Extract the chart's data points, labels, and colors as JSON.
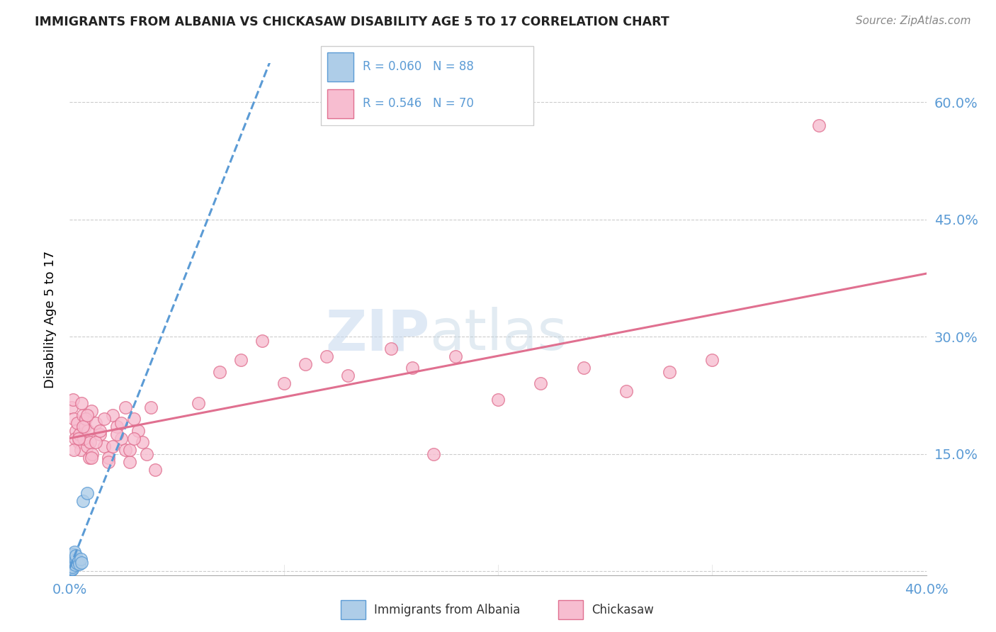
{
  "title": "IMMIGRANTS FROM ALBANIA VS CHICKASAW DISABILITY AGE 5 TO 17 CORRELATION CHART",
  "source": "Source: ZipAtlas.com",
  "ylabel": "Disability Age 5 to 17",
  "xlim": [
    0.0,
    0.4
  ],
  "ylim": [
    -0.005,
    0.65
  ],
  "yticks": [
    0.0,
    0.15,
    0.3,
    0.45,
    0.6
  ],
  "ytick_labels": [
    "",
    "15.0%",
    "30.0%",
    "45.0%",
    "60.0%"
  ],
  "background_color": "#ffffff",
  "albania_color": "#aecde8",
  "albania_edge": "#5b9bd5",
  "chickasaw_color": "#f7bdd0",
  "chickasaw_edge": "#e07090",
  "albania_trend_color": "#5b9bd5",
  "chickasaw_trend_color": "#e07090",
  "watermark_zip": "ZIP",
  "watermark_atlas": "atlas",
  "albania_data": [
    [
      0.0005,
      0.005
    ],
    [
      0.0008,
      0.01
    ],
    [
      0.001,
      0.008
    ],
    [
      0.0012,
      0.003
    ],
    [
      0.0006,
      0.015
    ],
    [
      0.0009,
      0.012
    ],
    [
      0.0007,
      0.018
    ],
    [
      0.0011,
      0.006
    ],
    [
      0.0013,
      0.009
    ],
    [
      0.0005,
      0.02
    ],
    [
      0.0008,
      0.004
    ],
    [
      0.001,
      0.013
    ],
    [
      0.0006,
      0.007
    ],
    [
      0.0012,
      0.016
    ],
    [
      0.0009,
      0.011
    ],
    [
      0.0007,
      0.002
    ],
    [
      0.0011,
      0.019
    ],
    [
      0.0013,
      0.014
    ],
    [
      0.0005,
      0.008
    ],
    [
      0.0008,
      0.017
    ],
    [
      0.001,
      0.005
    ],
    [
      0.0006,
      0.012
    ],
    [
      0.0012,
      0.009
    ],
    [
      0.0009,
      0.021
    ],
    [
      0.0007,
      0.003
    ],
    [
      0.0011,
      0.016
    ],
    [
      0.0013,
      0.007
    ],
    [
      0.0005,
      0.013
    ],
    [
      0.0008,
      0.01
    ],
    [
      0.001,
      0.018
    ],
    [
      0.0006,
      0.006
    ],
    [
      0.0012,
      0.014
    ],
    [
      0.0009,
      0.011
    ],
    [
      0.0007,
      0.004
    ],
    [
      0.0011,
      0.019
    ],
    [
      0.0013,
      0.008
    ],
    [
      0.0005,
      0.015
    ],
    [
      0.0008,
      0.002
    ],
    [
      0.001,
      0.012
    ],
    [
      0.0006,
      0.009
    ],
    [
      0.0012,
      0.017
    ],
    [
      0.0009,
      0.005
    ],
    [
      0.0007,
      0.013
    ],
    [
      0.0011,
      0.02
    ],
    [
      0.0013,
      0.007
    ],
    [
      0.0005,
      0.016
    ],
    [
      0.0008,
      0.011
    ],
    [
      0.001,
      0.003
    ],
    [
      0.0006,
      0.018
    ],
    [
      0.0012,
      0.008
    ],
    [
      0.0009,
      0.014
    ],
    [
      0.0007,
      0.01
    ],
    [
      0.0011,
      0.006
    ],
    [
      0.0013,
      0.015
    ],
    [
      0.0005,
      0.009
    ],
    [
      0.0008,
      0.012
    ],
    [
      0.001,
      0.019
    ],
    [
      0.0006,
      0.004
    ],
    [
      0.0012,
      0.016
    ],
    [
      0.0009,
      0.007
    ],
    [
      0.0007,
      0.013
    ],
    [
      0.0011,
      0.021
    ],
    [
      0.0013,
      0.005
    ],
    [
      0.0005,
      0.011
    ],
    [
      0.0008,
      0.017
    ],
    [
      0.001,
      0.008
    ],
    [
      0.0006,
      0.014
    ],
    [
      0.0012,
      0.003
    ],
    [
      0.0009,
      0.019
    ],
    [
      0.0007,
      0.01
    ],
    [
      0.0011,
      0.006
    ],
    [
      0.0013,
      0.015
    ],
    [
      0.0015,
      0.022
    ],
    [
      0.002,
      0.018
    ],
    [
      0.0018,
      0.012
    ],
    [
      0.0022,
      0.025
    ],
    [
      0.0025,
      0.008
    ],
    [
      0.003,
      0.015
    ],
    [
      0.0028,
      0.02
    ],
    [
      0.0035,
      0.01
    ],
    [
      0.004,
      0.013
    ],
    [
      0.0045,
      0.009
    ],
    [
      0.005,
      0.016
    ],
    [
      0.0055,
      0.011
    ],
    [
      0.006,
      0.09
    ],
    [
      0.008,
      0.1
    ]
  ],
  "chickasaw_data": [
    [
      0.001,
      0.21
    ],
    [
      0.002,
      0.195
    ],
    [
      0.003,
      0.18
    ],
    [
      0.004,
      0.165
    ],
    [
      0.0015,
      0.22
    ],
    [
      0.0025,
      0.17
    ],
    [
      0.0035,
      0.19
    ],
    [
      0.0045,
      0.175
    ],
    [
      0.005,
      0.155
    ],
    [
      0.006,
      0.2
    ],
    [
      0.007,
      0.185
    ],
    [
      0.008,
      0.16
    ],
    [
      0.009,
      0.145
    ],
    [
      0.01,
      0.205
    ],
    [
      0.0055,
      0.215
    ],
    [
      0.0065,
      0.17
    ],
    [
      0.0075,
      0.195
    ],
    [
      0.0085,
      0.18
    ],
    [
      0.0095,
      0.165
    ],
    [
      0.0105,
      0.15
    ],
    [
      0.012,
      0.19
    ],
    [
      0.014,
      0.175
    ],
    [
      0.016,
      0.16
    ],
    [
      0.018,
      0.145
    ],
    [
      0.02,
      0.2
    ],
    [
      0.022,
      0.185
    ],
    [
      0.024,
      0.17
    ],
    [
      0.026,
      0.155
    ],
    [
      0.028,
      0.14
    ],
    [
      0.03,
      0.195
    ],
    [
      0.032,
      0.18
    ],
    [
      0.034,
      0.165
    ],
    [
      0.036,
      0.15
    ],
    [
      0.038,
      0.21
    ],
    [
      0.04,
      0.13
    ],
    [
      0.002,
      0.155
    ],
    [
      0.004,
      0.17
    ],
    [
      0.006,
      0.185
    ],
    [
      0.008,
      0.2
    ],
    [
      0.01,
      0.145
    ],
    [
      0.012,
      0.165
    ],
    [
      0.014,
      0.18
    ],
    [
      0.016,
      0.195
    ],
    [
      0.018,
      0.14
    ],
    [
      0.02,
      0.16
    ],
    [
      0.022,
      0.175
    ],
    [
      0.024,
      0.19
    ],
    [
      0.026,
      0.21
    ],
    [
      0.028,
      0.155
    ],
    [
      0.03,
      0.17
    ],
    [
      0.06,
      0.215
    ],
    [
      0.07,
      0.255
    ],
    [
      0.08,
      0.27
    ],
    [
      0.09,
      0.295
    ],
    [
      0.1,
      0.24
    ],
    [
      0.11,
      0.265
    ],
    [
      0.12,
      0.275
    ],
    [
      0.13,
      0.25
    ],
    [
      0.15,
      0.285
    ],
    [
      0.16,
      0.26
    ],
    [
      0.17,
      0.15
    ],
    [
      0.18,
      0.275
    ],
    [
      0.2,
      0.22
    ],
    [
      0.22,
      0.24
    ],
    [
      0.24,
      0.26
    ],
    [
      0.26,
      0.23
    ],
    [
      0.28,
      0.255
    ],
    [
      0.3,
      0.27
    ],
    [
      0.35,
      0.57
    ]
  ]
}
